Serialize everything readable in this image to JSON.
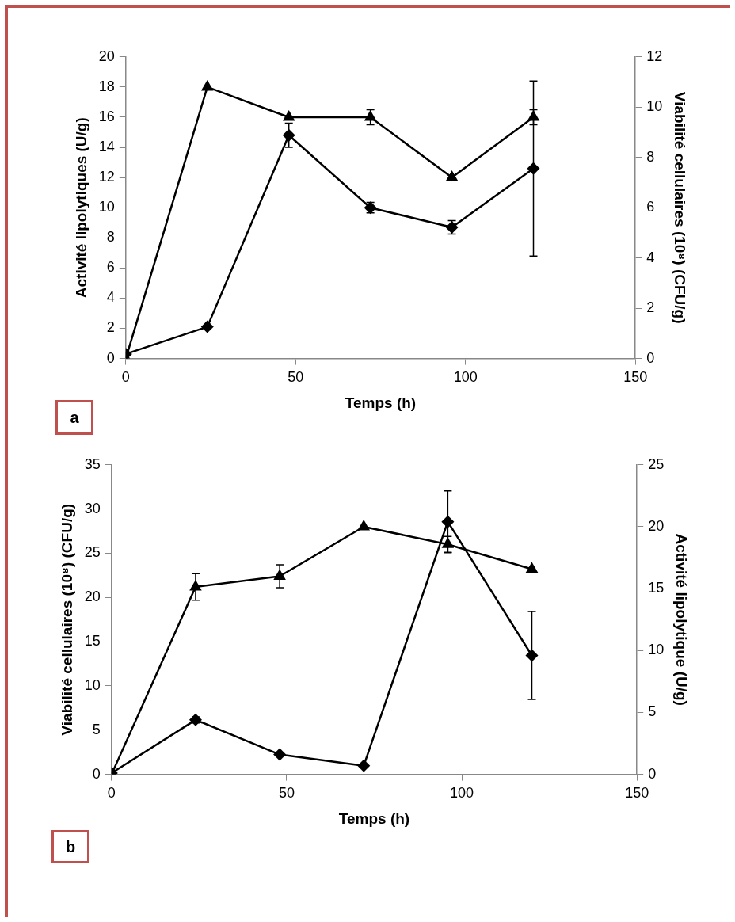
{
  "chart_data": [
    {
      "type": "line",
      "xlabel": "Temps (h)",
      "ylabel": "Activité lipolytiques (U/g)",
      "y2label": "Viabilité cellulaires (10⁸) (CFU/g)",
      "annotations": [
        "a"
      ],
      "x": [
        0,
        24,
        48,
        72,
        96,
        120
      ],
      "series": [
        {
          "color": "#000000",
          "marker": "diamond",
          "values": [
            0.3,
            2.1,
            14.8,
            10.0,
            8.7,
            12.6
          ],
          "errors": [
            null,
            null,
            0.8,
            0.35,
            0.45,
            5.8
          ]
        },
        {
          "color": "#000000",
          "marker": "triangle",
          "axis": "y2",
          "values": [
            0,
            10.8,
            9.6,
            9.6,
            7.2,
            9.6
          ],
          "errors": [
            null,
            null,
            null,
            0.3,
            null,
            0.3
          ]
        }
      ],
      "xlim": [
        0,
        150
      ],
      "xticks": [
        0,
        50,
        100,
        150
      ],
      "ylim": [
        0,
        20
      ],
      "yticks": [
        0,
        2,
        4,
        6,
        8,
        10,
        12,
        14,
        16,
        18,
        20
      ],
      "y2lim": [
        0,
        12
      ],
      "y2ticks": [
        0,
        2,
        4,
        6,
        8,
        10,
        12
      ],
      "grid": false,
      "legend": false,
      "line_style": "solid"
    },
    {
      "type": "line",
      "xlabel": "Temps (h)",
      "ylabel": "Viabilité cellulaires (10⁸) (CFU/g)",
      "y2label": "Activité lipolytique (U/g)",
      "annotations": [
        "b"
      ],
      "x": [
        0,
        24,
        48,
        72,
        96,
        120
      ],
      "series": [
        {
          "color": "#000000",
          "marker": "triangle",
          "values": [
            0,
            21.2,
            22.4,
            28.0,
            26.0,
            23.2
          ],
          "errors": [
            null,
            1.5,
            1.3,
            null,
            0.9,
            null
          ]
        },
        {
          "color": "#000000",
          "marker": "diamond",
          "axis": "y2",
          "values": [
            0.1,
            4.4,
            1.6,
            0.7,
            20.4,
            9.6
          ],
          "errors": [
            null,
            0.25,
            null,
            null,
            2.5,
            3.55
          ]
        }
      ],
      "xlim": [
        0,
        150
      ],
      "xticks": [
        0,
        50,
        100,
        150
      ],
      "ylim": [
        0,
        35
      ],
      "yticks": [
        0,
        5,
        10,
        15,
        20,
        25,
        30,
        35
      ],
      "y2lim": [
        0,
        25
      ],
      "y2ticks": [
        0,
        5,
        10,
        15,
        20,
        25
      ],
      "grid": false,
      "legend": false,
      "line_style": "solid"
    }
  ]
}
